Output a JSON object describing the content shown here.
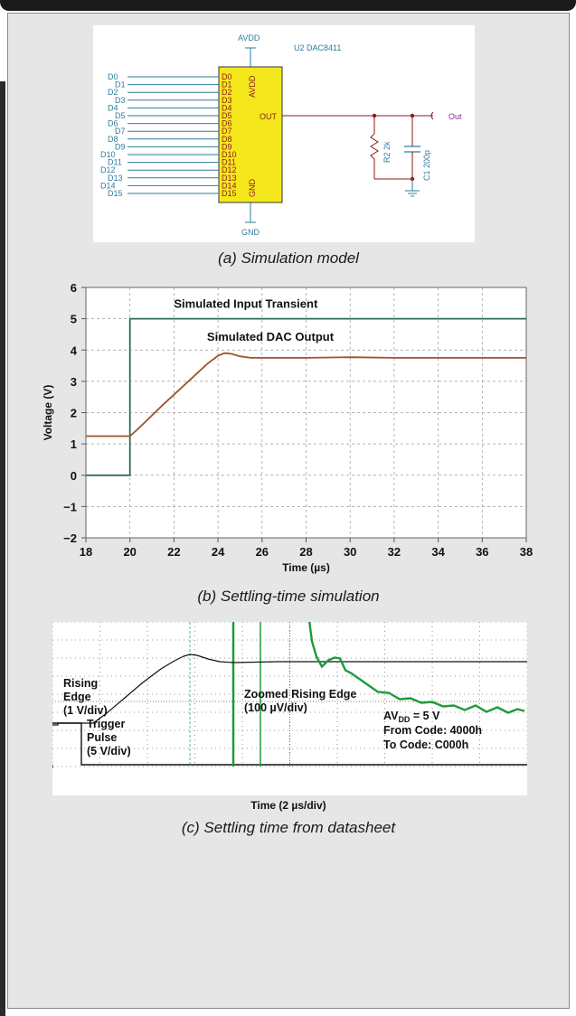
{
  "schematic": {
    "avdd_label": "AVDD",
    "gnd_label": "GND",
    "part_label": "U2 DAC8411",
    "out_pin": "OUT",
    "avdd_pin": "AVDD",
    "gnd_pin": "GND",
    "output_label": "Out",
    "r2_label": "R2 2k",
    "c1_label": "C1 200p",
    "inputs": [
      "D0",
      "D1",
      "D2",
      "D3",
      "D4",
      "D5",
      "D6",
      "D7",
      "D8",
      "D9",
      "D10",
      "D11",
      "D12",
      "D13",
      "D14",
      "D15"
    ],
    "caption": "(a) Simulation model",
    "wire_color": "#2e7d9c",
    "chip_color": "#f4e81c"
  },
  "simulation": {
    "caption": "(b) Settling-time simulation",
    "chart_data": {
      "type": "line",
      "title": "",
      "xlabel": "Time (µs)",
      "ylabel": "Voltage  (V)",
      "xlim": [
        18,
        38
      ],
      "ylim": [
        -2,
        6
      ],
      "xticks": [
        "18",
        "20",
        "22",
        "24",
        "26",
        "28",
        "30",
        "32",
        "34",
        "36",
        "38"
      ],
      "yticks": [
        "−2",
        "−1",
        "0",
        "1",
        "2",
        "3",
        "4",
        "5",
        "6"
      ],
      "grid": true,
      "series": [
        {
          "name": "Simulated Input Transient",
          "color": "#2e6e4e",
          "x": [
            18,
            20,
            20,
            38
          ],
          "y": [
            0,
            0,
            5,
            5
          ]
        },
        {
          "name": "Simulated DAC Output",
          "color": "#a0522d",
          "x": [
            18,
            20,
            20.4,
            21.5,
            22.5,
            23.5,
            24.0,
            24.3,
            24.6,
            25.0,
            25.5,
            26,
            27,
            28,
            30,
            32,
            34,
            36,
            38
          ],
          "y": [
            1.25,
            1.25,
            1.5,
            2.25,
            2.9,
            3.55,
            3.82,
            3.9,
            3.88,
            3.8,
            3.75,
            3.75,
            3.75,
            3.75,
            3.77,
            3.75,
            3.75,
            3.75,
            3.75
          ]
        }
      ]
    }
  },
  "scope": {
    "caption": "(c) Settling time from datasheet",
    "xlabel": "Time (2 µs/div)",
    "rising_edge_1": "Rising",
    "rising_edge_2": "Edge",
    "rising_edge_3": "(1 V/div)",
    "zoom_1": "Zoomed Rising Edge",
    "zoom_2": "(100 µV/div)",
    "trigger_1": "Trigger",
    "trigger_2": "Pulse",
    "trigger_3": "(5 V/div)",
    "av_main": "AV",
    "av_sub": "DD",
    "av_rest": " = 5 V",
    "from_code": "From Code: 4000h",
    "to_code": "To Code: C000h",
    "zoom_color": "#1f9a3c",
    "trace_color": "#111111"
  }
}
